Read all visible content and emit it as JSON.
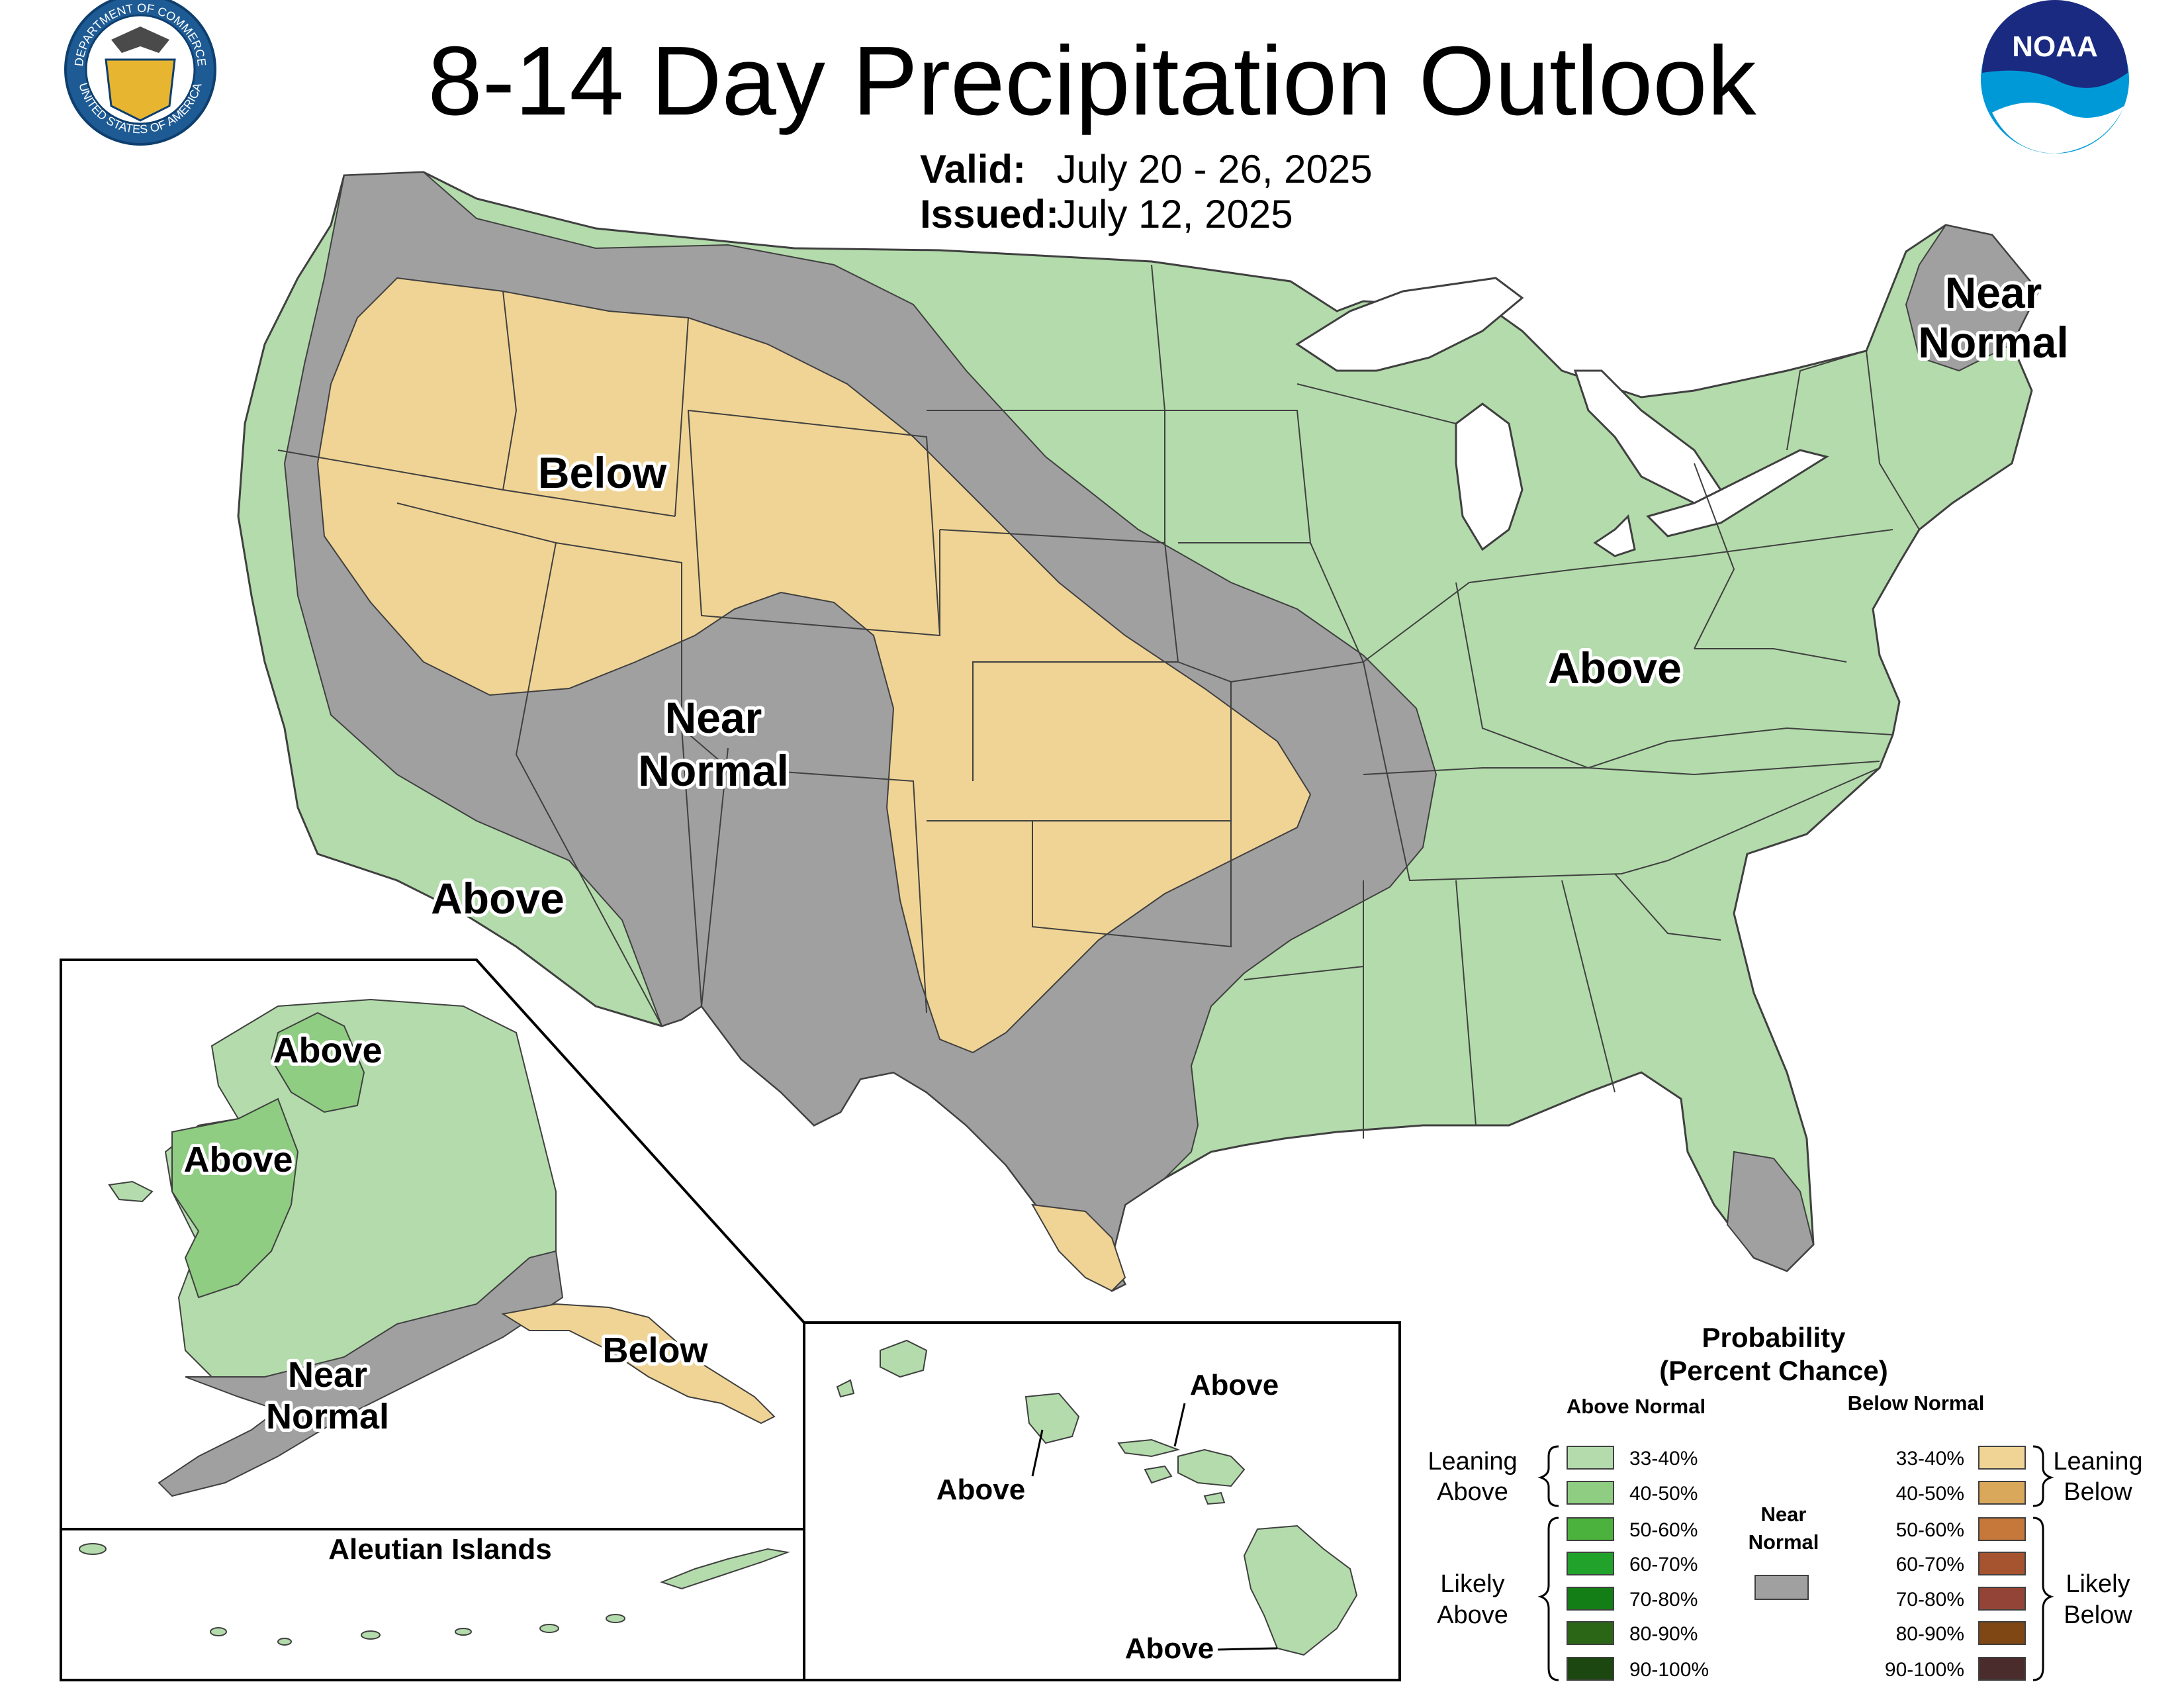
{
  "title": "8-14 Day Precipitation Outlook",
  "valid_label": "Valid:",
  "valid_value": "July 20 - 26, 2025",
  "issued_label": "Issued:",
  "issued_value": "July 12, 2025",
  "logos": {
    "commerce": {
      "ring_text_top": "DEPARTMENT OF COMMERCE",
      "ring_text_bottom": "UNITED STATES OF AMERICA",
      "icon": "commerce-seal-icon"
    },
    "noaa": {
      "text": "NOAA",
      "icon": "noaa-logo-icon"
    }
  },
  "colors": {
    "leaning_above": "#b3dbab",
    "above_40_50": "#8fcd82",
    "above_50_60": "#4bb33d",
    "above_60_70": "#21a22a",
    "above_70_80": "#137e16",
    "above_80_90": "#2b6616",
    "above_90_100": "#1c4710",
    "near_normal": "#a0a0a0",
    "leaning_below": "#f0d495",
    "below_40_50": "#d9a85a",
    "below_50_60": "#c6773a",
    "below_60_70": "#a6532f",
    "below_70_80": "#944437",
    "below_80_90": "#7f4714",
    "below_90_100": "#4b2c2c",
    "lakes": "#ffffff",
    "boundary": "#404040"
  },
  "conus_labels": {
    "below": "Below",
    "near_normal_sw_1": "Near",
    "near_normal_sw_2": "Normal",
    "above_ca": "Above",
    "above_east": "Above",
    "near_normal_ne_1": "Near",
    "near_normal_ne_2": "Normal"
  },
  "alaska_labels": {
    "above_north": "Above",
    "above_west": "Above",
    "near_normal_1": "Near",
    "near_normal_2": "Normal",
    "below": "Below"
  },
  "aleutian_title": "Aleutian Islands",
  "hawaii_labels": {
    "above_maui": "Above",
    "above_oahu": "Above",
    "above_big_island": "Above"
  },
  "legend": {
    "title_line1": "Probability",
    "title_line2": "(Percent Chance)",
    "above_header": "Above Normal",
    "below_header": "Below Normal",
    "near_normal_line1": "Near",
    "near_normal_line2": "Normal",
    "leaning_above_1": "Leaning",
    "leaning_above_2": "Above",
    "likely_above_1": "Likely",
    "likely_above_2": "Above",
    "leaning_below_1": "Leaning",
    "leaning_below_2": "Below",
    "likely_below_1": "Likely",
    "likely_below_2": "Below",
    "ranges": [
      "33-40%",
      "40-50%",
      "50-60%",
      "60-70%",
      "70-80%",
      "80-90%",
      "90-100%"
    ]
  }
}
